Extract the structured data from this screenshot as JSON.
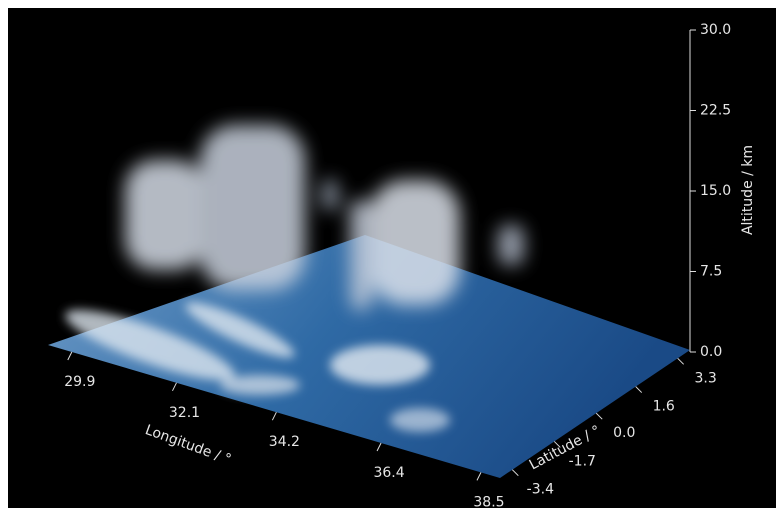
{
  "chart_data": {
    "type": "volume3d",
    "xlabel": "Longitude / °",
    "ylabel": "Latitude / °",
    "zlabel": "Altitude / km",
    "xlim": [
      29.4,
      38.9
    ],
    "xticks": [
      29.9,
      32.1,
      34.2,
      36.4,
      38.5
    ],
    "ylim": [
      -3.9,
      3.8
    ],
    "yticks": [
      -3.4,
      -1.7,
      {
        "value": 0,
        "label": "0.0"
      },
      1.6,
      3.3
    ],
    "zlim": [
      0,
      30
    ],
    "zticks": [
      {
        "value": 0,
        "label": "0.0"
      },
      7.5,
      {
        "value": 15,
        "label": "15.0"
      },
      22.5,
      {
        "value": 30,
        "label": "30.0"
      }
    ],
    "color": "#e8e8e8"
  }
}
